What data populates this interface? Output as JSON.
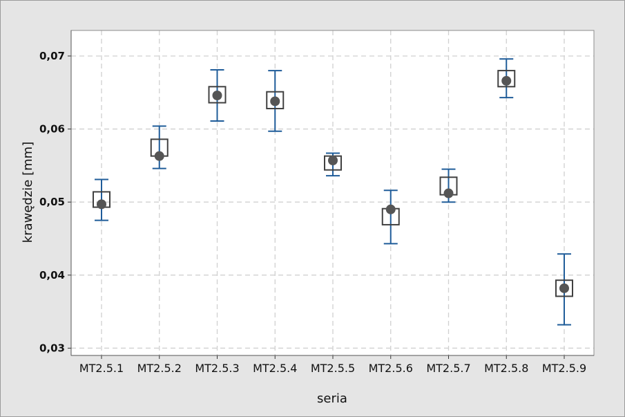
{
  "chart_data": {
    "type": "interval",
    "xlabel": "seria",
    "ylabel": "krawędzie [mm]",
    "ylim": [
      0.029,
      0.0735
    ],
    "yticks": [
      0.03,
      0.04,
      0.05,
      0.06,
      0.07
    ],
    "ytick_labels": [
      "0,03",
      "0,04",
      "0,05",
      "0,06",
      "0,07"
    ],
    "grid": true,
    "categories": [
      "MT2.5.1",
      "MT2.5.2",
      "MT2.5.3",
      "MT2.5.4",
      "MT2.5.5",
      "MT2.5.6",
      "MT2.5.7",
      "MT2.5.8",
      "MT2.5.9"
    ],
    "mean": [
      0.0497,
      0.0563,
      0.0646,
      0.0638,
      0.0557,
      0.049,
      0.0512,
      0.0666,
      0.0382
    ],
    "median": [
      0.0503,
      0.0575,
      0.0647,
      0.064,
      0.0553,
      0.048,
      0.0522,
      0.0669,
      0.0382
    ],
    "whisker_low": [
      0.0475,
      0.0546,
      0.0611,
      0.0597,
      0.0536,
      0.0443,
      0.05,
      0.0643,
      0.0332
    ],
    "whisker_high": [
      0.0531,
      0.0604,
      0.0681,
      0.068,
      0.0567,
      0.0516,
      0.0545,
      0.0696,
      0.0429
    ],
    "box_low": [
      0.0493,
      0.0563,
      0.0636,
      0.0628,
      0.0544,
      0.0469,
      0.051,
      0.0658,
      0.0371
    ],
    "box_high": [
      0.0514,
      0.0586,
      0.0658,
      0.0651,
      0.0563,
      0.0491,
      0.0534,
      0.068,
      0.0393
    ],
    "colors": {
      "whisker": "#1f5c99",
      "marker": "#555555",
      "box": "#404040",
      "grid": "#d0d0d0",
      "plot_bg": "#ffffff",
      "frame_bg": "#e5e5e5"
    }
  }
}
